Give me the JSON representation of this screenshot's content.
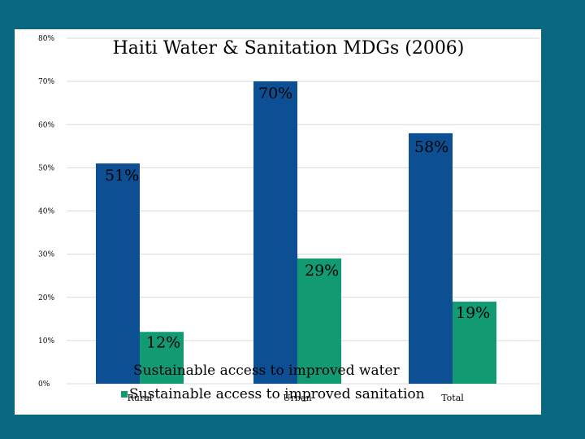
{
  "chart_data": {
    "type": "bar",
    "title": "Haiti Water & Sanitation MDGs (2006)",
    "categories": [
      "Rural",
      "Urban",
      "Total"
    ],
    "series": [
      {
        "name": "Sustainable access to improved water",
        "values": [
          51,
          70,
          58
        ],
        "labels": [
          "51%",
          "70%",
          "58%"
        ],
        "color": "#0d4f93"
      },
      {
        "name": "Sustainable access to improved sanitation",
        "values": [
          12,
          29,
          19
        ],
        "labels": [
          "12%",
          "29%",
          "19%"
        ],
        "color": "#129a72"
      }
    ],
    "ylim": [
      0,
      80
    ],
    "yticks": [
      0,
      10,
      20,
      30,
      40,
      50,
      60,
      70,
      80
    ],
    "ytick_labels": [
      "0%",
      "10%",
      "20%",
      "30%",
      "40%",
      "50%",
      "60%",
      "70%",
      "80%"
    ],
    "grid": true,
    "legend_position": "bottom",
    "xlabel": "",
    "ylabel": ""
  },
  "colors": {
    "background": "#0a6780",
    "panel": "#ffffff",
    "gridline": "#d9d9d9"
  }
}
